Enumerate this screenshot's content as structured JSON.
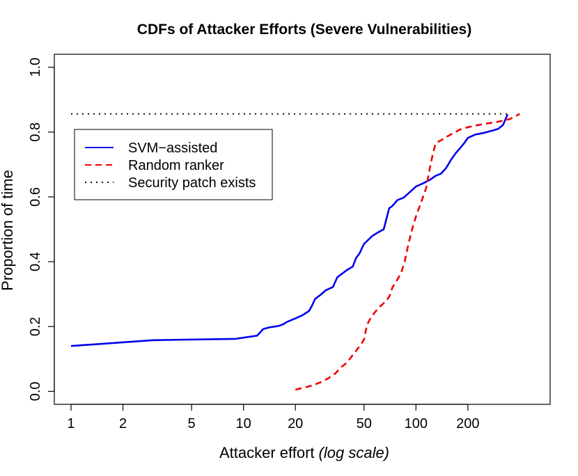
{
  "chart_data": {
    "type": "line",
    "title": "CDFs of Attacker Efforts (Severe Vulnerabilities)",
    "xlabel": "Attacker effort",
    "xlabel_note": "(log scale)",
    "ylabel": "Proportion of time",
    "x_scale": "log",
    "xlim": [
      0.8,
      600
    ],
    "ylim": [
      -0.04,
      1.04
    ],
    "x_ticks": [
      1,
      2,
      5,
      10,
      20,
      50,
      100,
      200
    ],
    "x_tick_labels": [
      "1",
      "2",
      "5",
      "10",
      "20",
      "50",
      "100",
      "200"
    ],
    "y_ticks": [
      0.0,
      0.2,
      0.4,
      0.6,
      0.8,
      1.0
    ],
    "y_tick_labels": [
      "0.0",
      "0.2",
      "0.4",
      "0.6",
      "0.8",
      "1.0"
    ],
    "grid": false,
    "legend_position": "top-left",
    "series": [
      {
        "name": "SVM−assisted",
        "color": "#0000ee",
        "line_style": "solid",
        "points": [
          [
            1,
            0.14
          ],
          [
            3,
            0.158
          ],
          [
            9,
            0.162
          ],
          [
            12,
            0.172
          ],
          [
            13,
            0.192
          ],
          [
            14,
            0.197
          ],
          [
            16,
            0.202
          ],
          [
            17,
            0.207
          ],
          [
            18,
            0.215
          ],
          [
            20,
            0.225
          ],
          [
            22,
            0.235
          ],
          [
            24,
            0.248
          ],
          [
            25,
            0.265
          ],
          [
            26,
            0.285
          ],
          [
            28,
            0.298
          ],
          [
            30,
            0.312
          ],
          [
            33,
            0.322
          ],
          [
            35,
            0.352
          ],
          [
            40,
            0.375
          ],
          [
            43,
            0.385
          ],
          [
            45,
            0.412
          ],
          [
            47,
            0.425
          ],
          [
            50,
            0.455
          ],
          [
            53,
            0.468
          ],
          [
            56,
            0.48
          ],
          [
            60,
            0.49
          ],
          [
            65,
            0.5
          ],
          [
            70,
            0.565
          ],
          [
            73,
            0.572
          ],
          [
            78,
            0.59
          ],
          [
            85,
            0.598
          ],
          [
            90,
            0.61
          ],
          [
            100,
            0.632
          ],
          [
            110,
            0.642
          ],
          [
            120,
            0.652
          ],
          [
            130,
            0.665
          ],
          [
            140,
            0.672
          ],
          [
            150,
            0.69
          ],
          [
            160,
            0.715
          ],
          [
            170,
            0.735
          ],
          [
            180,
            0.75
          ],
          [
            190,
            0.765
          ],
          [
            200,
            0.782
          ],
          [
            220,
            0.792
          ],
          [
            250,
            0.798
          ],
          [
            280,
            0.805
          ],
          [
            300,
            0.81
          ],
          [
            320,
            0.822
          ],
          [
            340,
            0.855
          ]
        ]
      },
      {
        "name": "Random ranker",
        "color": "#ee0000",
        "line_style": "dashed",
        "points": [
          [
            20,
            0.005
          ],
          [
            25,
            0.018
          ],
          [
            28,
            0.028
          ],
          [
            31,
            0.04
          ],
          [
            34,
            0.055
          ],
          [
            37,
            0.075
          ],
          [
            40,
            0.09
          ],
          [
            43,
            0.112
          ],
          [
            46,
            0.132
          ],
          [
            48,
            0.145
          ],
          [
            50,
            0.16
          ],
          [
            52,
            0.205
          ],
          [
            55,
            0.23
          ],
          [
            58,
            0.245
          ],
          [
            62,
            0.262
          ],
          [
            66,
            0.275
          ],
          [
            70,
            0.292
          ],
          [
            73,
            0.32
          ],
          [
            78,
            0.345
          ],
          [
            82,
            0.365
          ],
          [
            86,
            0.4
          ],
          [
            90,
            0.45
          ],
          [
            95,
            0.5
          ],
          [
            100,
            0.54
          ],
          [
            105,
            0.57
          ],
          [
            110,
            0.6
          ],
          [
            115,
            0.63
          ],
          [
            120,
            0.685
          ],
          [
            125,
            0.73
          ],
          [
            130,
            0.765
          ],
          [
            140,
            0.775
          ],
          [
            150,
            0.785
          ],
          [
            165,
            0.797
          ],
          [
            180,
            0.808
          ],
          [
            200,
            0.815
          ],
          [
            220,
            0.82
          ],
          [
            250,
            0.825
          ],
          [
            300,
            0.832
          ],
          [
            350,
            0.84
          ],
          [
            400,
            0.856
          ]
        ]
      },
      {
        "name": "Security patch exists",
        "color": "#000000",
        "line_style": "dotted",
        "points": [
          [
            1,
            0.856
          ],
          [
            340,
            0.856
          ]
        ]
      }
    ]
  }
}
